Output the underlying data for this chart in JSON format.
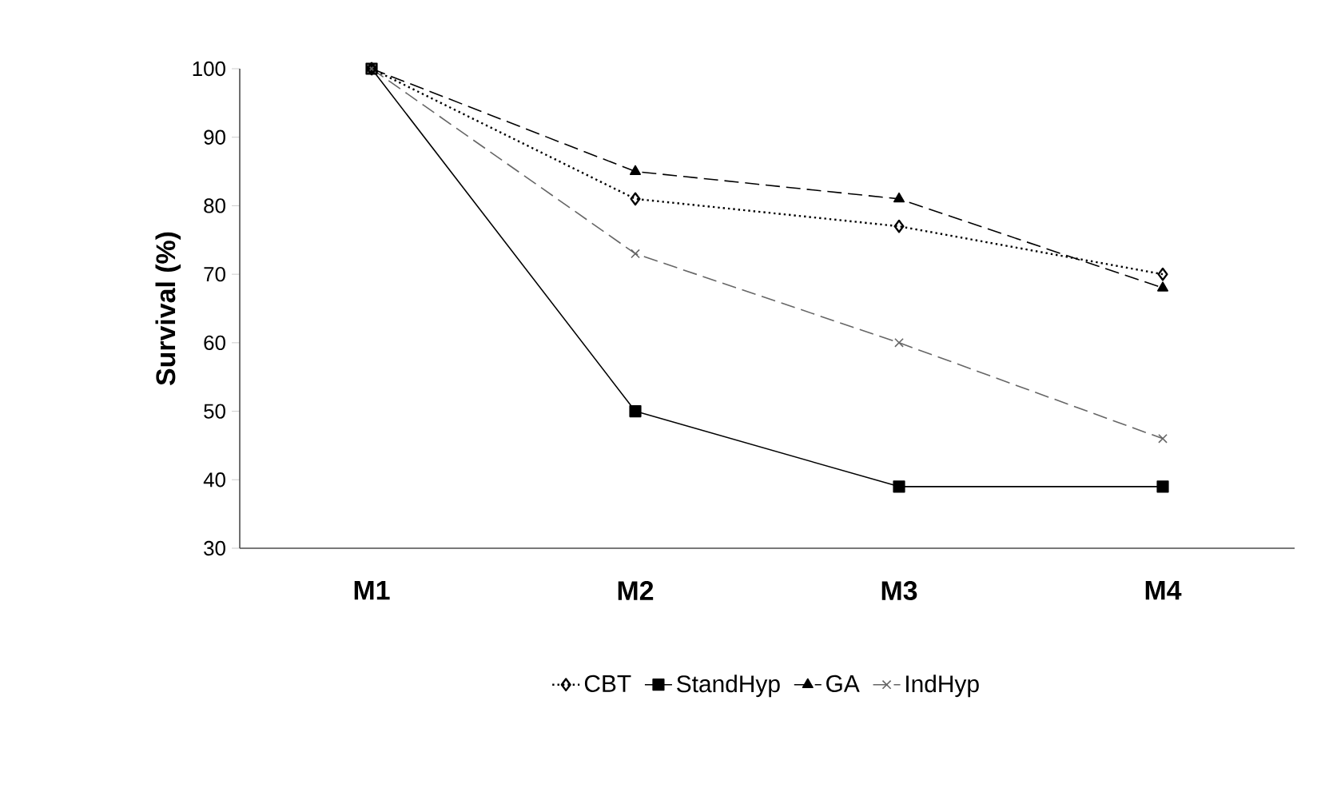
{
  "chart_data": {
    "type": "line",
    "ylabel": "Survival (%)",
    "categories": [
      "M1",
      "M2",
      "M3",
      "M4"
    ],
    "ylim": [
      30,
      100
    ],
    "yticks": [
      30,
      40,
      50,
      60,
      70,
      80,
      90,
      100
    ],
    "grid": false,
    "legend": "bottom",
    "series": [
      {
        "name": "CBT",
        "color": "#000000",
        "values": [
          100,
          81,
          77,
          70
        ],
        "marker": "diamond",
        "line_style": "dotted"
      },
      {
        "name": "StandHyp",
        "color": "#000000",
        "values": [
          100,
          50,
          39,
          39
        ],
        "marker": "square",
        "line_style": "solid"
      },
      {
        "name": "GA",
        "color": "#000000",
        "values": [
          100,
          85,
          81,
          68
        ],
        "marker": "triangle",
        "line_style": "dashed"
      },
      {
        "name": "IndHyp",
        "color": "#666666",
        "values": [
          100,
          73,
          60,
          46
        ],
        "marker": "cross",
        "line_style": "dashed"
      }
    ]
  }
}
